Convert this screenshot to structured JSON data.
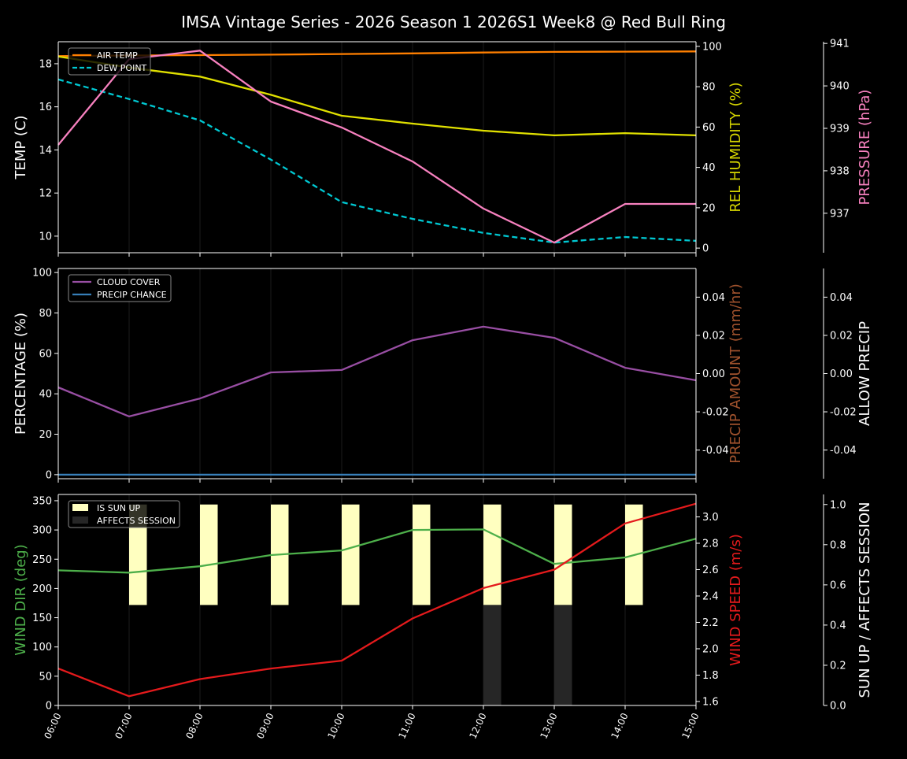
{
  "chart_data": {
    "title": "IMSA Vintage Series - 2026 Season 1 2026S1 Week8 @ Red Bull Ring",
    "x": [
      "06:00",
      "07:00",
      "08:00",
      "09:00",
      "10:00",
      "11:00",
      "12:00",
      "13:00",
      "14:00",
      "15:00"
    ],
    "grid": "vertical lines only",
    "panels": [
      {
        "type": "line",
        "axes": [
          {
            "side": "left",
            "label": "TEMP (C)",
            "color": "#ffffff",
            "ylim": [
              9.23,
              19.02
            ],
            "ticks": [
              10,
              12,
              14,
              16,
              18
            ]
          },
          {
            "side": "right",
            "label": "REL HUMIDITY (%)",
            "color": "#d4d400",
            "ylim": [
              -2.3,
              102.3
            ],
            "ticks": [
              0,
              20,
              40,
              60,
              80,
              100
            ]
          },
          {
            "side": "right-outer",
            "label": "PRESSURE (hPa)",
            "color": "#f781bf",
            "ylim": [
              936.07,
              941.04
            ],
            "ticks": [
              937,
              938,
              939,
              940,
              941
            ]
          }
        ],
        "legend": {
          "position": "top-left",
          "entries": [
            "AIR TEMP",
            "DEW POINT"
          ]
        },
        "series": [
          {
            "name": "AIR TEMP",
            "axis": 0,
            "color": "#ff7f00",
            "style": "solid",
            "values": [
              18.35,
              18.38,
              18.4,
              18.42,
              18.45,
              18.48,
              18.52,
              18.55,
              18.56,
              18.57
            ]
          },
          {
            "name": "DEW POINT",
            "axis": 0,
            "color": "#00c8d2",
            "style": "dashed",
            "values": [
              17.27,
              16.36,
              15.37,
              13.55,
              11.58,
              10.8,
              10.15,
              9.7,
              9.96,
              9.78
            ]
          },
          {
            "axis": 1,
            "color": "#e0e000",
            "style": "solid",
            "values": [
              95,
              89.5,
              85,
              76,
              65.6,
              61.7,
              58.2,
              55.9,
              57,
              55.9
            ]
          },
          {
            "axis": 2,
            "color": "#f781bf",
            "style": "solid",
            "values": [
              938.61,
              940.63,
              940.83,
              939.63,
              939.02,
              938.22,
              937.11,
              936.31,
              937.22,
              937.22
            ]
          }
        ]
      },
      {
        "type": "line",
        "axes": [
          {
            "side": "left",
            "label": "PERCENTAGE (%)",
            "color": "#ffffff",
            "ylim": [
              -2,
              102
            ],
            "ticks": [
              0,
              20,
              40,
              60,
              80,
              100
            ]
          },
          {
            "side": "right",
            "label": "PRECIP AMOUNT (mm/hr)",
            "color": "#a0522d",
            "ylim": [
              -0.055,
              0.055
            ],
            "ticks": [
              -0.04,
              -0.02,
              0.0,
              0.02,
              0.04
            ]
          },
          {
            "side": "right-outer",
            "label": "ALLOW PRECIP",
            "color": "#ffffff",
            "ylim": [
              -0.055,
              0.055
            ],
            "ticks": [
              -0.04,
              -0.02,
              0.0,
              0.02,
              0.04
            ]
          }
        ],
        "legend": {
          "position": "top-left",
          "entries": [
            "CLOUD COVER",
            "PRECIP CHANCE"
          ]
        },
        "series": [
          {
            "name": "CLOUD COVER",
            "axis": 0,
            "color": "#984ea3",
            "style": "solid",
            "values": [
              43.2,
              28.8,
              37.7,
              50.6,
              51.8,
              66.5,
              73.2,
              67.7,
              52.9,
              46.7
            ]
          },
          {
            "name": "PRECIP CHANCE",
            "axis": 0,
            "color": "#377eb8",
            "style": "solid",
            "values": [
              0,
              0,
              0,
              0,
              0,
              0,
              0,
              0,
              0,
              0
            ]
          }
        ]
      },
      {
        "type": "line+bar",
        "axes": [
          {
            "side": "left",
            "label": "WIND DIR (deg)",
            "color": "#4daf4a",
            "ylim": [
              0,
              360.7
            ],
            "ticks": [
              0,
              50,
              100,
              150,
              200,
              250,
              300,
              350
            ]
          },
          {
            "side": "right",
            "label": "WIND SPEED (m/s)",
            "color": "#e41a1c",
            "ylim": [
              1.57,
              3.17
            ],
            "ticks": [
              1.6,
              1.8,
              2.0,
              2.2,
              2.4,
              2.6,
              2.8,
              3.0
            ]
          },
          {
            "side": "right-outer",
            "label": "SUN UP / AFFECTS SESSION",
            "color": "#ffffff",
            "ylim": [
              0,
              1.05
            ],
            "ticks": [
              0.0,
              0.2,
              0.4,
              0.6,
              0.8,
              1.0
            ]
          }
        ],
        "legend": {
          "position": "top-left",
          "entries": [
            "IS SUN UP",
            "AFFECTS SESSION"
          ]
        },
        "bars": [
          {
            "name": "IS SUN UP",
            "color": "#ffffc0",
            "range": [
              0.5,
              1.0
            ],
            "values": [
              0,
              1,
              1,
              1,
              1,
              1,
              1,
              1,
              1,
              0
            ]
          },
          {
            "name": "AFFECTS SESSION",
            "color": "#262626",
            "range": [
              0,
              0.5
            ],
            "values": [
              0,
              0,
              0,
              0,
              0,
              0,
              1,
              1,
              0,
              0
            ]
          }
        ],
        "series": [
          {
            "axis": 0,
            "color": "#4daf4a",
            "style": "solid",
            "values": [
              231,
              227,
              238,
              257,
              265,
              300,
              301,
              242,
              253,
              285
            ]
          },
          {
            "axis": 1,
            "color": "#e41a1c",
            "style": "solid",
            "values": [
              1.85,
              1.64,
              1.77,
              1.85,
              1.91,
              2.23,
              2.46,
              2.6,
              2.95,
              3.1
            ]
          }
        ]
      }
    ]
  }
}
